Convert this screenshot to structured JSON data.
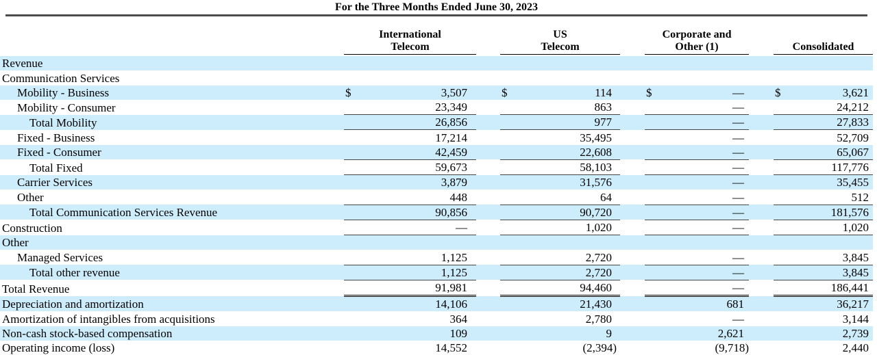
{
  "title": "For the Three Months Ended June 30, 2023",
  "columns": [
    {
      "line1": "International",
      "line2": "Telecom"
    },
    {
      "line1": "US",
      "line2": "Telecom"
    },
    {
      "line1": "Corporate and",
      "line2": "Other (1)"
    },
    {
      "line1": "",
      "line2": "Consolidated"
    }
  ],
  "colors": {
    "row_shade": "#ceedfc"
  },
  "rows": [
    {
      "label": "Revenue",
      "indent": 0,
      "shaded": true,
      "dollar": false,
      "values": null,
      "rule": null
    },
    {
      "label": "Communication Services",
      "indent": 0,
      "shaded": false,
      "dollar": false,
      "values": null,
      "rule": null
    },
    {
      "label": "Mobility - Business",
      "indent": 1,
      "shaded": true,
      "dollar": true,
      "values": [
        "3,507",
        "114",
        "—",
        "3,621"
      ],
      "rule": null
    },
    {
      "label": "Mobility - Consumer",
      "indent": 1,
      "shaded": false,
      "dollar": false,
      "values": [
        "23,349",
        "863",
        "—",
        "24,212"
      ],
      "rule": "single"
    },
    {
      "label": "Total Mobility",
      "indent": 2,
      "shaded": true,
      "dollar": false,
      "values": [
        "26,856",
        "977",
        "—",
        "27,833"
      ],
      "rule": "single"
    },
    {
      "label": "Fixed - Business",
      "indent": 1,
      "shaded": false,
      "dollar": false,
      "values": [
        "17,214",
        "35,495",
        "—",
        "52,709"
      ],
      "rule": null
    },
    {
      "label": "Fixed - Consumer",
      "indent": 1,
      "shaded": true,
      "dollar": false,
      "values": [
        "42,459",
        "22,608",
        "—",
        "65,067"
      ],
      "rule": "single"
    },
    {
      "label": "Total Fixed",
      "indent": 2,
      "shaded": false,
      "dollar": false,
      "values": [
        "59,673",
        "58,103",
        "—",
        "117,776"
      ],
      "rule": "single"
    },
    {
      "label": "Carrier Services",
      "indent": 1,
      "shaded": true,
      "dollar": false,
      "values": [
        "3,879",
        "31,576",
        "—",
        "35,455"
      ],
      "rule": null
    },
    {
      "label": "Other",
      "indent": 1,
      "shaded": false,
      "dollar": false,
      "values": [
        "448",
        "64",
        "—",
        "512"
      ],
      "rule": "single"
    },
    {
      "label": "Total Communication Services Revenue",
      "indent": 2,
      "shaded": true,
      "dollar": false,
      "values": [
        "90,856",
        "90,720",
        "—",
        "181,576"
      ],
      "rule": "single"
    },
    {
      "label": "Construction",
      "indent": 0,
      "shaded": false,
      "dollar": false,
      "values": [
        "—",
        "1,020",
        "—",
        "1,020"
      ],
      "rule": "single"
    },
    {
      "label": "Other",
      "indent": 0,
      "shaded": true,
      "dollar": false,
      "values": null,
      "rule": null
    },
    {
      "label": "Managed Services",
      "indent": 1,
      "shaded": false,
      "dollar": false,
      "values": [
        "1,125",
        "2,720",
        "—",
        "3,845"
      ],
      "rule": "single"
    },
    {
      "label": "Total other revenue",
      "indent": 2,
      "shaded": true,
      "dollar": false,
      "values": [
        "1,125",
        "2,720",
        "—",
        "3,845"
      ],
      "rule": "single"
    },
    {
      "label": "Total Revenue",
      "indent": 0,
      "shaded": false,
      "dollar": false,
      "values": [
        "91,981",
        "94,460",
        "—",
        "186,441"
      ],
      "rule": "double"
    },
    {
      "label": "Depreciation and amortization",
      "indent": 0,
      "shaded": true,
      "dollar": false,
      "values": [
        "14,106",
        "21,430",
        "681",
        "36,217"
      ],
      "rule": null
    },
    {
      "label": "Amortization of intangibles from acquisitions",
      "indent": 0,
      "shaded": false,
      "dollar": false,
      "values": [
        "364",
        "2,780",
        "—",
        "3,144"
      ],
      "rule": null
    },
    {
      "label": "Non-cash stock-based compensation",
      "indent": 0,
      "shaded": true,
      "dollar": false,
      "values": [
        "109",
        "9",
        "2,621",
        "2,739"
      ],
      "rule": null
    },
    {
      "label": "Operating income (loss)",
      "indent": 0,
      "shaded": false,
      "dollar": false,
      "values": [
        "14,552",
        "(2,394)",
        "(9,718)",
        "2,440"
      ],
      "rule": null
    }
  ]
}
